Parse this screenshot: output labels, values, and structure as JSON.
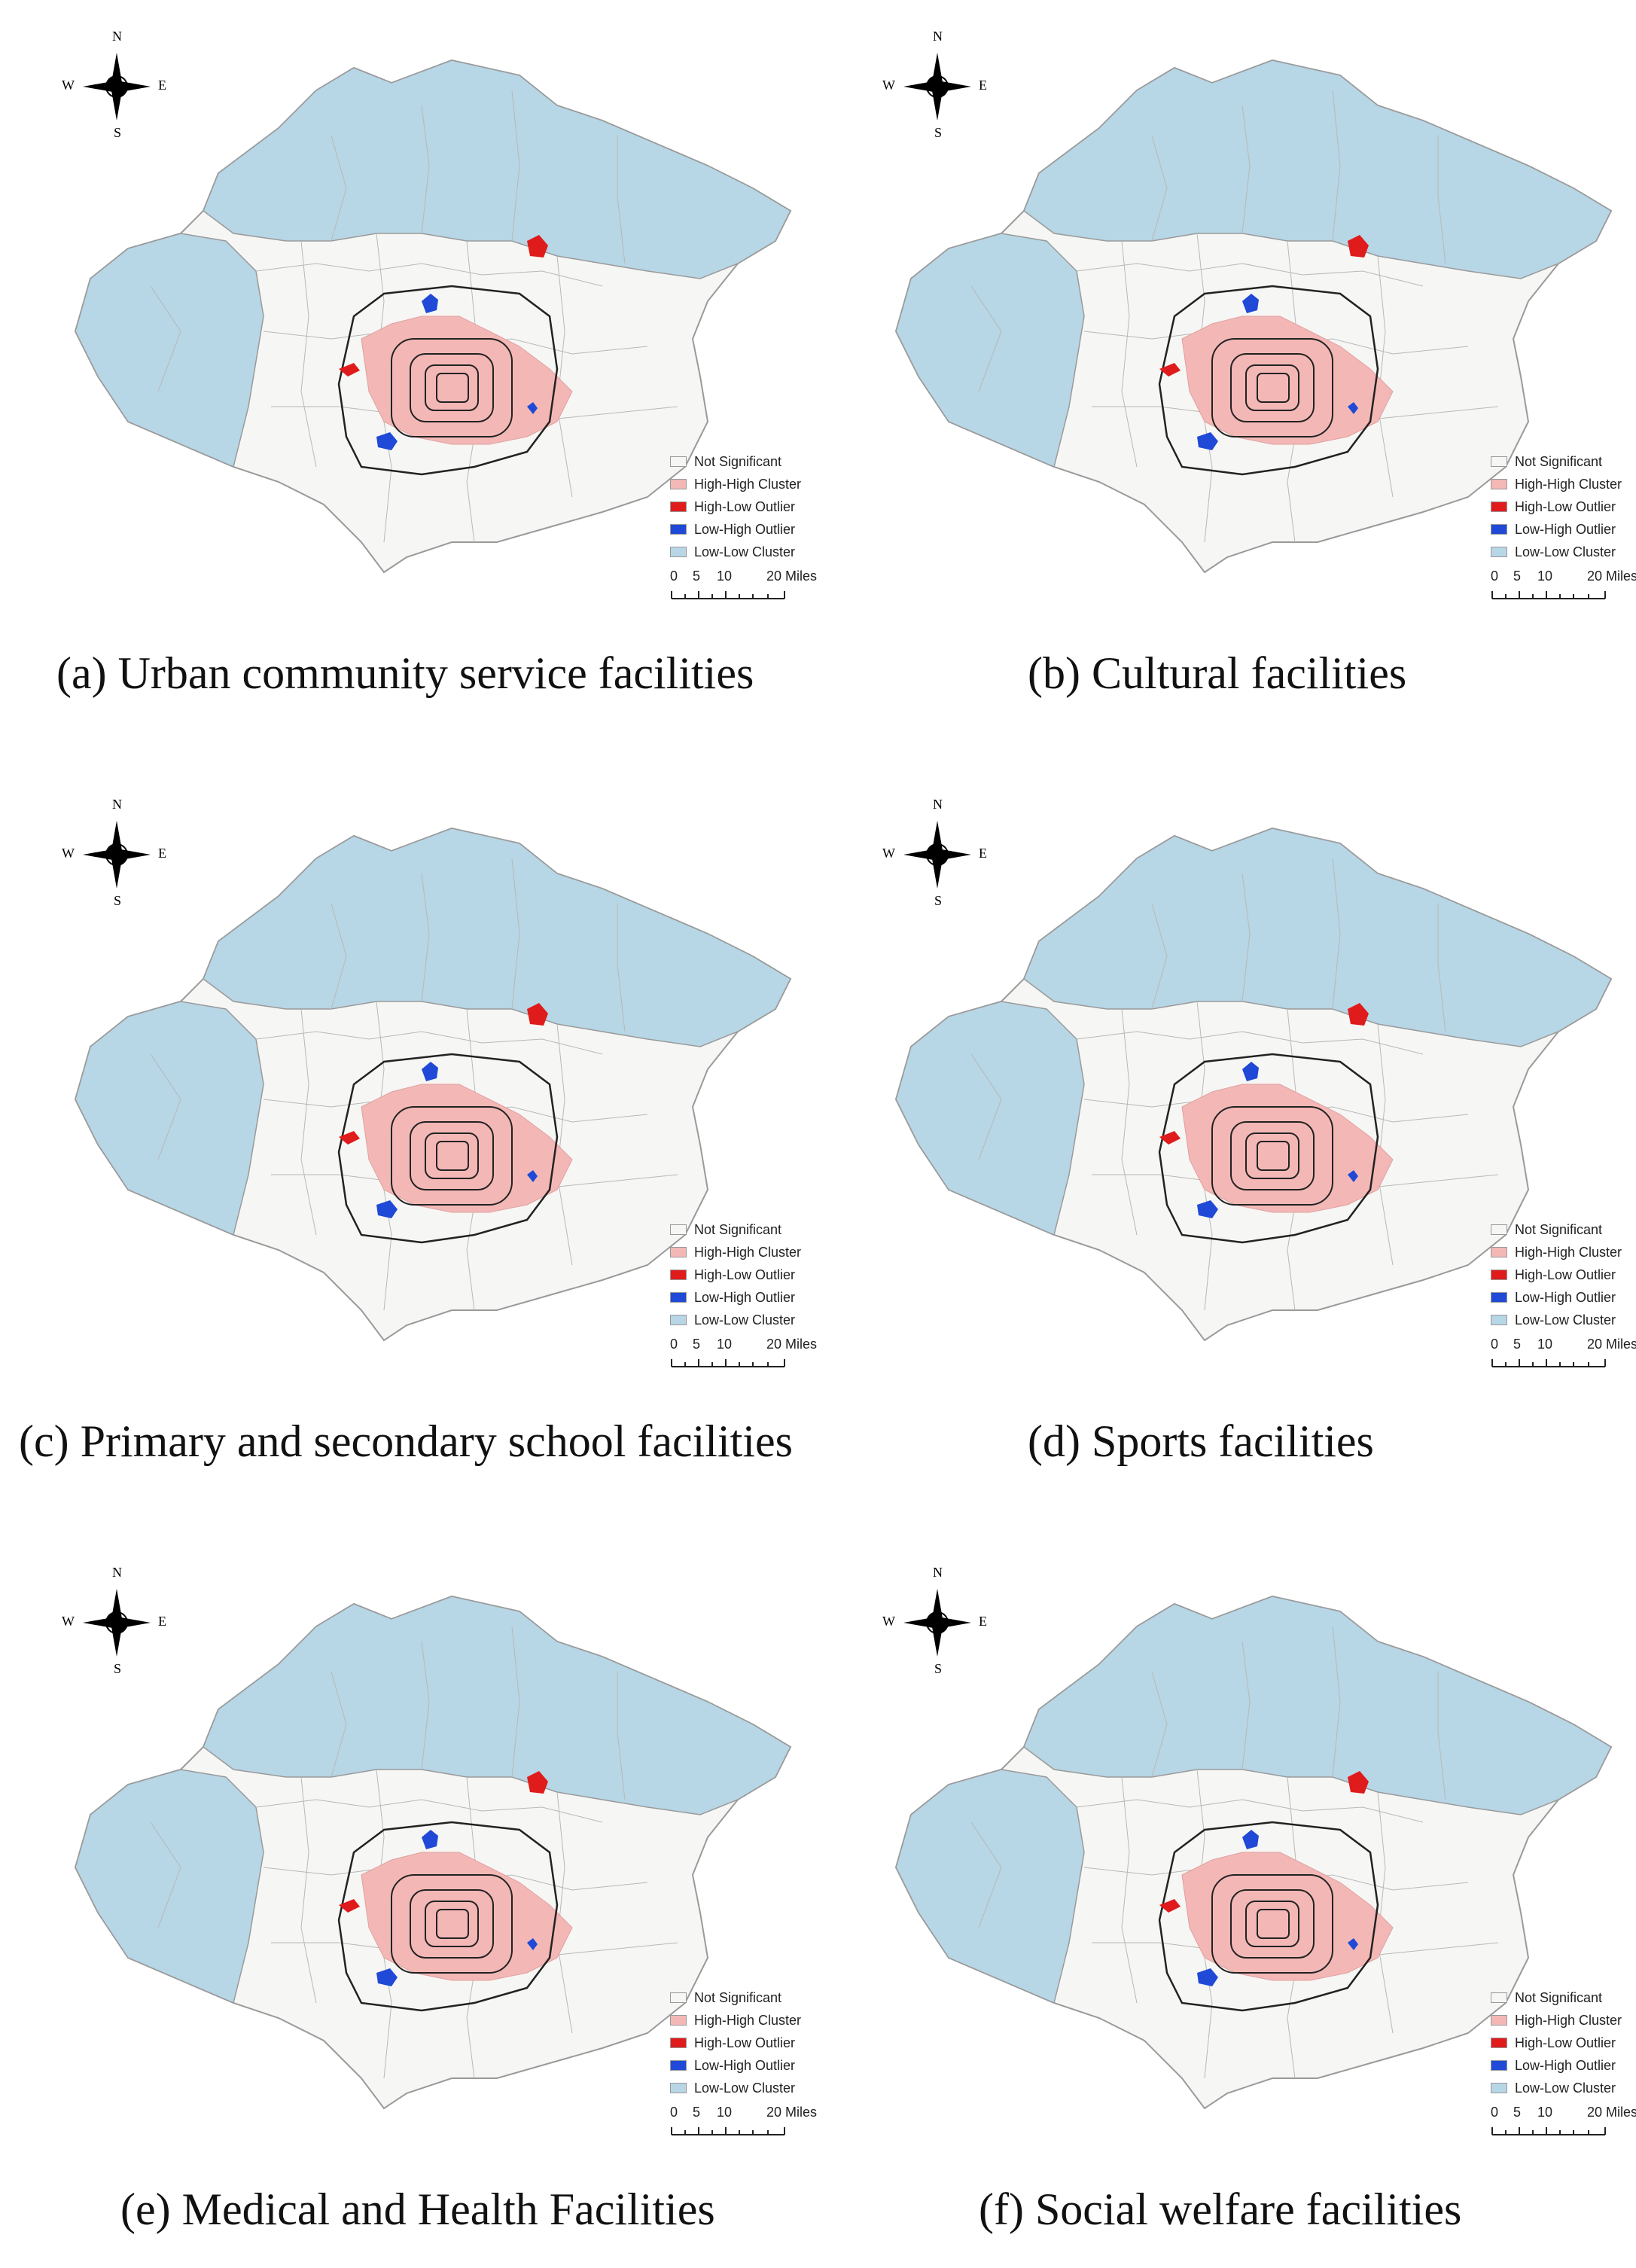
{
  "colors": {
    "not_significant": "#f6f6f4",
    "high_high": "#f3b8b6",
    "high_low": "#e01b1b",
    "low_high": "#1f49d6",
    "low_low": "#b7d6e6",
    "boundary": "#9a9a9a",
    "ring": "#222222"
  },
  "compass": {
    "n": "N",
    "s": "S",
    "e": "E",
    "w": "W"
  },
  "legend": {
    "items": [
      {
        "label": "Not Significant",
        "color_key": "not_significant"
      },
      {
        "label": "High-High Cluster",
        "color_key": "high_high"
      },
      {
        "label": "High-Low Outlier",
        "color_key": "high_low"
      },
      {
        "label": "Low-High Outlier",
        "color_key": "low_high"
      },
      {
        "label": "Low-Low Cluster",
        "color_key": "low_low"
      }
    ]
  },
  "scale": {
    "labels": [
      "0",
      "5",
      "10",
      "20 Miles"
    ]
  },
  "panels": [
    {
      "id": "a",
      "caption": "(a) Urban community service facilities"
    },
    {
      "id": "b",
      "caption": "(b) Cultural facilities"
    },
    {
      "id": "c",
      "caption": "(c) Primary and secondary school facilities"
    },
    {
      "id": "d",
      "caption": "(d) Sports facilities"
    },
    {
      "id": "e",
      "caption": "(e) Medical and Health Facilities"
    },
    {
      "id": "f",
      "caption": "(f) Social welfare facilities"
    }
  ]
}
